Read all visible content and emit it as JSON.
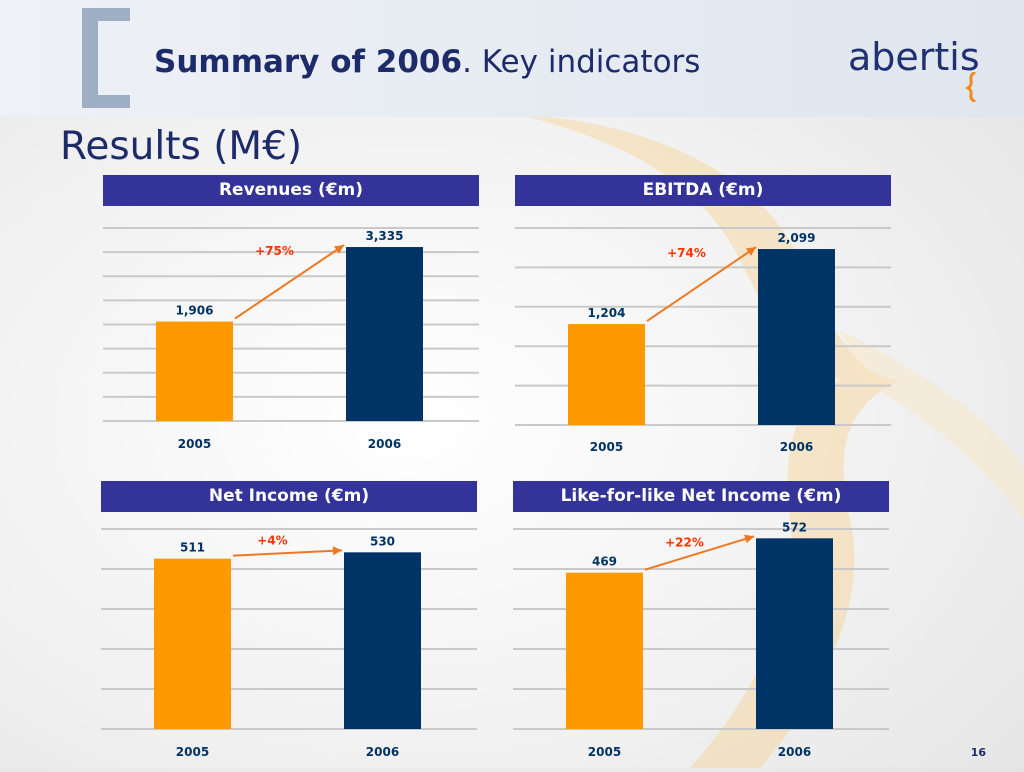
{
  "slide": {
    "title_bold": "Summary of 2006",
    "title_rest": ". Key indicators",
    "section_title": "Results (M€)",
    "logo_text": "abertis",
    "page_number": "16"
  },
  "colors": {
    "header_bar": "#333399",
    "bar_2005": "#ff9900",
    "bar_2006": "#003366",
    "arrow": "#f07820",
    "growth_text": "#ff3300",
    "label_text": "#003366"
  },
  "chart_data": [
    {
      "type": "bar",
      "title": "Revenues (€m)",
      "categories": [
        "2005",
        "2006"
      ],
      "values": [
        1906,
        3335
      ],
      "value_labels": [
        "1,906",
        "3,335"
      ],
      "growth": "+75%",
      "ylim": [
        0,
        3700
      ],
      "grid": true,
      "gridlines": 9
    },
    {
      "type": "bar",
      "title": "EBITDA (€m)",
      "categories": [
        "2005",
        "2006"
      ],
      "values": [
        1204,
        2099
      ],
      "value_labels": [
        "1,204",
        "2,099"
      ],
      "growth": "+74%",
      "ylim": [
        0,
        2350
      ],
      "grid": true,
      "gridlines": 6
    },
    {
      "type": "bar",
      "title": "Net Income (€m)",
      "categories": [
        "2005",
        "2006"
      ],
      "values": [
        511,
        530
      ],
      "value_labels": [
        "511",
        "530"
      ],
      "growth": "+4%",
      "ylim": [
        0,
        600
      ],
      "grid": true,
      "gridlines": 6
    },
    {
      "type": "bar",
      "title": "Like-for-like Net Income (€m)",
      "categories": [
        "2005",
        "2006"
      ],
      "values": [
        469,
        572
      ],
      "value_labels": [
        "469",
        "572"
      ],
      "growth": "+22%",
      "ylim": [
        0,
        600
      ],
      "grid": true,
      "gridlines": 6
    }
  ]
}
